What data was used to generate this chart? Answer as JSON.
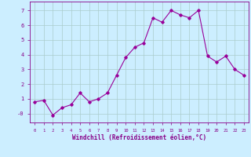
{
  "x": [
    0,
    1,
    2,
    3,
    4,
    5,
    6,
    7,
    8,
    9,
    10,
    11,
    12,
    13,
    14,
    15,
    16,
    17,
    18,
    19,
    20,
    21,
    22,
    23
  ],
  "y": [
    0.8,
    0.9,
    -0.1,
    0.4,
    0.6,
    1.4,
    0.8,
    1.0,
    1.4,
    2.6,
    3.8,
    4.5,
    4.8,
    6.5,
    6.2,
    7.0,
    6.7,
    6.5,
    7.0,
    3.9,
    3.5,
    3.9,
    3.0,
    2.6
  ],
  "line_color": "#990099",
  "marker": "D",
  "marker_size": 1.8,
  "bg_color": "#cceeff",
  "grid_color": "#aacccc",
  "xlabel": "Windchill (Refroidissement éolien,°C)",
  "xlabel_color": "#880088",
  "tick_color": "#880088",
  "xlim": [
    -0.5,
    23.5
  ],
  "ylim": [
    -0.6,
    7.6
  ],
  "yticks": [
    0,
    1,
    2,
    3,
    4,
    5,
    6,
    7
  ],
  "ytick_labels": [
    "-0",
    "1",
    "2",
    "3",
    "4",
    "5",
    "6",
    "7"
  ],
  "xticks": [
    0,
    1,
    2,
    3,
    4,
    5,
    6,
    7,
    8,
    9,
    10,
    11,
    12,
    13,
    14,
    15,
    16,
    17,
    18,
    19,
    20,
    21,
    22,
    23
  ]
}
